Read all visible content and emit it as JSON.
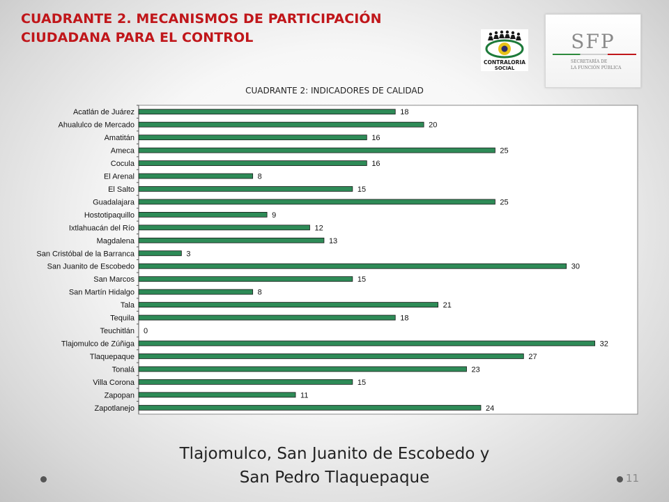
{
  "header": {
    "title_line1": "CUADRANTE 2. MECANISMOS DE PARTICIPACIÓN",
    "title_line2": "CIUDADANA PARA EL CONTROL"
  },
  "logos": {
    "contraloria_text1": "CONTRALORIA",
    "contraloria_text2": "SOCIAL",
    "sfp_title": "SFP",
    "sfp_sub1": "SECRETARÍA DE",
    "sfp_sub2": "LA FUNCIÓN PÚBLICA"
  },
  "footer": {
    "line1": "Tlajomulco, San Juanito de Escobedo y",
    "line2": "San Pedro Tlaquepaque",
    "page_number": "11"
  },
  "colors": {
    "bar_fill": "#2e8b57",
    "title_red": "#c0161a"
  },
  "chart_data": {
    "type": "bar",
    "orientation": "horizontal",
    "title": "CUADRANTE  2: INDICADORES  DE CALIDAD",
    "xlim": [
      0,
      35
    ],
    "grid": false,
    "legend": "none",
    "categories": [
      "Acatlán de Juárez",
      "Ahualulco de Mercado",
      "Amatitán",
      "Ameca",
      "Cocula",
      "El Arenal",
      "El Salto",
      "Guadalajara",
      "Hostotipaquillo",
      "Ixtlahuacán del Río",
      "Magdalena",
      "San Cristóbal de la Barranca",
      "San Juanito de Escobedo",
      "San Marcos",
      "San Martín Hidalgo",
      "Tala",
      "Tequila",
      "Teuchitlán",
      "Tlajomulco de Zúñiga",
      "Tlaquepaque",
      "Tonalá",
      "Villa Corona",
      "Zapopan",
      "Zapotlanejo"
    ],
    "values": [
      18,
      20,
      16,
      25,
      16,
      8,
      15,
      25,
      9,
      12,
      13,
      3,
      30,
      15,
      8,
      21,
      18,
      0,
      32,
      27,
      23,
      15,
      11,
      24
    ],
    "data_labels": [
      "18",
      "20",
      "16",
      "25",
      "16",
      "8",
      "15",
      "25",
      "9",
      "12",
      "13",
      "3",
      "30",
      "15",
      "8",
      "21",
      "18",
      "0",
      "32",
      "27",
      "23",
      "15",
      "11",
      "24"
    ]
  }
}
